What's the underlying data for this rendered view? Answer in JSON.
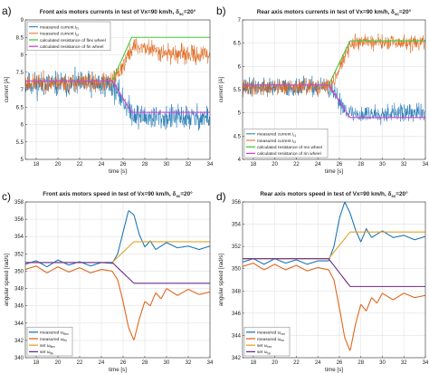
{
  "chart_data": [
    {
      "panel_label": "a)",
      "type": "line",
      "title_main": "Front axis motors currents in test of Vx=90 km/h, δ",
      "title_sub": "sc",
      "title_tail": "=20°",
      "xlabel": "time [s]",
      "ylabel": "current [A]",
      "xlim": [
        17,
        34
      ],
      "ylim": [
        5,
        9
      ],
      "xticks": [
        18,
        20,
        22,
        24,
        26,
        28,
        30,
        32,
        34
      ],
      "yticks": [
        5,
        5.5,
        6,
        6.5,
        7,
        7.5,
        8,
        8.5,
        9
      ],
      "legend_position": "top-left",
      "grid": true,
      "series": [
        {
          "name": "measured current I",
          "name_sub": "f1",
          "color": "#1f77b4",
          "kind": "noisy",
          "x": [
            17,
            24.8,
            25.3,
            26,
            26.5,
            27,
            28,
            30,
            32,
            34
          ],
          "values": [
            7.15,
            7.15,
            7.0,
            6.7,
            6.45,
            6.3,
            6.2,
            6.2,
            6.2,
            6.2
          ],
          "noise": 0.22,
          "seed": 11
        },
        {
          "name": "measured current I",
          "name_sub": "f2",
          "color": "#e0661b",
          "kind": "noisy",
          "x": [
            17,
            24.8,
            25.3,
            26,
            26.5,
            27,
            28,
            30,
            32,
            34
          ],
          "values": [
            7.2,
            7.2,
            7.35,
            7.7,
            8.0,
            8.25,
            8.2,
            8.05,
            8.0,
            8.0
          ],
          "noise": 0.16,
          "seed": 23
        },
        {
          "name": "calculated resistance of flex wheel",
          "name_sub": "",
          "color": "#44c93a",
          "kind": "line",
          "x": [
            17,
            25,
            26.8,
            34
          ],
          "values": [
            7.25,
            7.25,
            8.5,
            8.5
          ]
        },
        {
          "name": "calculated resistance of fin wheel",
          "name_sub": "",
          "color": "#d63fd6",
          "kind": "line",
          "x": [
            17,
            25,
            26.8,
            34
          ],
          "values": [
            7.25,
            7.25,
            6.35,
            6.35
          ]
        }
      ]
    },
    {
      "panel_label": "b)",
      "type": "line",
      "title_main": "Rear axis motors currents in test of Vx=90 km/h, δ",
      "title_sub": "sc",
      "title_tail": "=20°",
      "xlabel": "time [s]",
      "ylabel": "current [A]",
      "xlim": [
        17,
        34
      ],
      "ylim": [
        4,
        7
      ],
      "xticks": [
        18,
        20,
        22,
        24,
        26,
        28,
        30,
        32,
        34
      ],
      "yticks": [
        4,
        4.5,
        5,
        5.5,
        6,
        6.5,
        7
      ],
      "legend_position": "bottom-left",
      "grid": true,
      "series": [
        {
          "name": "measured current I",
          "name_sub": "r1",
          "color": "#1f77b4",
          "kind": "noisy",
          "x": [
            17,
            24.8,
            25.3,
            26,
            26.5,
            27,
            28,
            30,
            32,
            34
          ],
          "values": [
            5.55,
            5.55,
            5.45,
            5.25,
            5.1,
            5.0,
            4.95,
            5.0,
            5.0,
            5.0
          ],
          "noise": 0.12,
          "seed": 37
        },
        {
          "name": "measured current I",
          "name_sub": "r2",
          "color": "#e0661b",
          "kind": "noisy",
          "x": [
            17,
            24.8,
            25.3,
            26,
            26.5,
            27,
            28,
            30,
            32,
            34
          ],
          "values": [
            5.55,
            5.55,
            5.65,
            5.95,
            6.2,
            6.45,
            6.55,
            6.5,
            6.5,
            6.5
          ],
          "noise": 0.1,
          "seed": 41
        },
        {
          "name": "calculated resistance of rex wheel",
          "name_sub": "",
          "color": "#44c93a",
          "kind": "line",
          "x": [
            17,
            25,
            27,
            34
          ],
          "values": [
            5.6,
            5.6,
            6.55,
            6.55
          ]
        },
        {
          "name": "calculated resistance of rin wheel",
          "name_sub": "",
          "color": "#d63fd6",
          "kind": "line",
          "x": [
            17,
            25,
            27,
            34
          ],
          "values": [
            5.6,
            5.6,
            4.9,
            4.9
          ]
        }
      ]
    },
    {
      "panel_label": "c)",
      "type": "line",
      "title_main": "Front axis motors speed in test of Vx=90 km/h, δ",
      "title_sub": "sc",
      "title_tail": "=20°",
      "xlabel": "time [s]",
      "ylabel": "angular speed [rad/s]",
      "xlim": [
        17,
        34
      ],
      "ylim": [
        340,
        358
      ],
      "xticks": [
        18,
        20,
        22,
        24,
        26,
        28,
        30,
        32,
        34
      ],
      "yticks": [
        340,
        342,
        344,
        346,
        348,
        350,
        352,
        354,
        356,
        358
      ],
      "legend_position": "bottom-left",
      "grid": true,
      "series": [
        {
          "name": "measured ω",
          "name_sub": "flex",
          "color": "#1f77b4",
          "kind": "line",
          "x": [
            17,
            18,
            19,
            20,
            21,
            22,
            23,
            24,
            25,
            25.5,
            26,
            26.5,
            27,
            27.5,
            28,
            28.5,
            29,
            30,
            31,
            32,
            33,
            34
          ],
          "values": [
            350.8,
            351.2,
            350.5,
            351.3,
            350.7,
            351.1,
            350.6,
            351.0,
            350.9,
            352,
            354.5,
            357.0,
            356.5,
            354.2,
            352.8,
            353.5,
            352.5,
            353.3,
            352.7,
            352.9,
            352.5,
            352.9
          ]
        },
        {
          "name": "measured ω",
          "name_sub": "fin",
          "color": "#e0661b",
          "kind": "line",
          "x": [
            17,
            18,
            19,
            20,
            21,
            22,
            23,
            24,
            25,
            25.5,
            26,
            26.5,
            27,
            27.5,
            28,
            28.5,
            29,
            29.5,
            30,
            31,
            32,
            33,
            34
          ],
          "values": [
            350.2,
            350.6,
            349.8,
            350.5,
            349.9,
            350.4,
            349.8,
            350.2,
            350.0,
            349.0,
            346.5,
            343.5,
            342.0,
            344.5,
            346.5,
            346.0,
            347.5,
            346.8,
            348.0,
            347.2,
            347.9,
            347.3,
            347.6
          ]
        },
        {
          "name": "set ω",
          "name_sub": "flex",
          "color": "#e3a227",
          "kind": "line",
          "x": [
            17,
            25,
            27,
            34
          ],
          "values": [
            351.0,
            351.0,
            353.4,
            353.4
          ]
        },
        {
          "name": "set ω",
          "name_sub": "fin",
          "color": "#6a2c8c",
          "kind": "line",
          "x": [
            17,
            25,
            27,
            34
          ],
          "values": [
            351.0,
            351.0,
            348.6,
            348.6
          ]
        }
      ]
    },
    {
      "panel_label": "d)",
      "type": "line",
      "title_main": "Rear axis motors speed in test of Vx=90 km/h, δ",
      "title_sub": "sc",
      "title_tail": "=20°",
      "xlabel": "time [s]",
      "ylabel": "angular speed [rad/s]",
      "xlim": [
        17,
        34
      ],
      "ylim": [
        342,
        356
      ],
      "xticks": [
        18,
        20,
        22,
        24,
        26,
        28,
        30,
        32,
        34
      ],
      "yticks": [
        342,
        344,
        346,
        348,
        350,
        352,
        354,
        356
      ],
      "legend_position": "bottom-left",
      "grid": true,
      "series": [
        {
          "name": "measured ω",
          "name_sub": "rex",
          "color": "#1f77b4",
          "kind": "line",
          "x": [
            17,
            18,
            19,
            20,
            21,
            22,
            23,
            24,
            25,
            25.5,
            26,
            26.5,
            27,
            27.5,
            28,
            28.5,
            29,
            30,
            31,
            32,
            33,
            34
          ],
          "values": [
            350.6,
            350.9,
            350.4,
            350.9,
            350.5,
            350.8,
            350.4,
            350.7,
            350.7,
            352,
            354.5,
            356.0,
            355.0,
            353.5,
            352.4,
            353.6,
            352.8,
            353.4,
            352.8,
            353.0,
            352.6,
            352.9
          ]
        },
        {
          "name": "measured ω",
          "name_sub": "rin",
          "color": "#e0661b",
          "kind": "line",
          "x": [
            17,
            18,
            19,
            20,
            21,
            22,
            23,
            24,
            25,
            25.5,
            26,
            26.5,
            27,
            27.5,
            28,
            28.5,
            29,
            29.5,
            30,
            31,
            32,
            33,
            34
          ],
          "values": [
            350.2,
            350.5,
            349.9,
            350.4,
            349.9,
            350.3,
            349.8,
            350.1,
            349.9,
            349.0,
            346.5,
            343.8,
            342.6,
            345.0,
            346.8,
            346.2,
            347.4,
            346.9,
            347.8,
            347.2,
            347.8,
            347.4,
            347.6
          ]
        },
        {
          "name": "set ω",
          "name_sub": "rex",
          "color": "#e3a227",
          "kind": "line",
          "x": [
            17,
            25,
            27,
            34
          ],
          "values": [
            350.9,
            350.9,
            353.3,
            353.3
          ]
        },
        {
          "name": "set ω",
          "name_sub": "rin",
          "color": "#6a2c8c",
          "kind": "line",
          "x": [
            17,
            25,
            27,
            34
          ],
          "values": [
            350.9,
            350.9,
            348.4,
            348.4
          ]
        }
      ]
    }
  ]
}
